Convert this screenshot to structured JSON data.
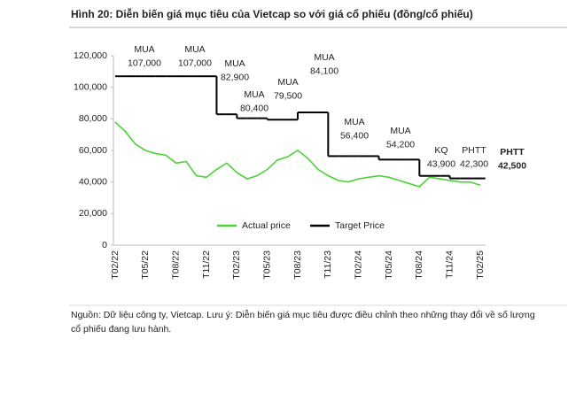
{
  "chart_data": {
    "type": "line",
    "title": "Hình 20: Diễn biến giá mục tiêu của Vietcap so với giá cổ phiếu (đồng/cổ phiếu)",
    "categories": [
      "T02/22",
      null,
      null,
      "T05/22",
      null,
      null,
      "T08/22",
      null,
      null,
      "T11/22",
      null,
      null,
      "T02/23",
      null,
      null,
      "T05/23",
      null,
      null,
      "T08/23",
      null,
      null,
      "T11/23",
      null,
      null,
      "T02/24",
      null,
      null,
      "T05/24",
      null,
      null,
      "T08/24",
      null,
      null,
      "T11/24",
      null,
      null,
      "T02/25"
    ],
    "series": [
      {
        "name": "Actual price",
        "color": "#4cd137",
        "values": [
          78000,
          72000,
          64000,
          60000,
          58000,
          57000,
          52000,
          53000,
          44000,
          43000,
          48000,
          52000,
          46000,
          42000,
          44000,
          48000,
          54000,
          56000,
          60000,
          55000,
          48000,
          44000,
          41000,
          40000,
          42000,
          43000,
          44000,
          43000,
          41000,
          39000,
          37000,
          43000,
          42000,
          41000,
          40000,
          40000,
          38000
        ]
      },
      {
        "name": "Target Price",
        "color": "#000000",
        "step": true,
        "values": [
          107000,
          107000,
          107000,
          107000,
          107000,
          107000,
          107000,
          107000,
          107000,
          107000,
          82900,
          82900,
          80400,
          80400,
          80400,
          79500,
          79500,
          79500,
          84100,
          84100,
          84100,
          56400,
          56400,
          56400,
          56400,
          56400,
          54200,
          54200,
          54200,
          54200,
          43900,
          43900,
          43900,
          42300,
          42300,
          42300,
          42300
        ]
      }
    ],
    "ylim": [
      0,
      120000
    ],
    "yticks": [
      0,
      {
        "value": 20000,
        "label": "20,000"
      },
      {
        "value": 40000,
        "label": "40,000"
      },
      {
        "value": 60000,
        "label": "60,000"
      },
      {
        "value": 80000,
        "label": "80,000"
      },
      {
        "value": 100000,
        "label": "100,000"
      },
      {
        "value": 120000,
        "label": "120,000"
      }
    ],
    "grid": false,
    "legend": "bottom",
    "annotations": [
      {
        "lines": [
          "MUA",
          "107,000"
        ]
      },
      {
        "lines": [
          "MUA",
          "107,000"
        ]
      },
      {
        "lines": [
          "MUA",
          "82,900"
        ]
      },
      {
        "lines": [
          "MUA",
          "80,400"
        ]
      },
      {
        "lines": [
          "MUA",
          "79,500"
        ]
      },
      {
        "lines": [
          "MUA",
          "84,100"
        ]
      },
      {
        "lines": [
          "MUA",
          "56,400"
        ]
      },
      {
        "lines": [
          "MUA",
          "54,200"
        ]
      },
      {
        "lines": [
          "KQ",
          "43,900"
        ]
      },
      {
        "lines": [
          "PHTT",
          "42,300"
        ]
      },
      {
        "lines": [
          "PHTT",
          "42,500"
        ]
      }
    ],
    "source": [
      "Nguồn: Dữ liệu công ty, Vietcap. Lưu ý: Diễn biến giá mục tiêu được điều chỉnh theo những thay đổi về số lượng",
      "cổ phiếu đang lưu hành."
    ]
  }
}
